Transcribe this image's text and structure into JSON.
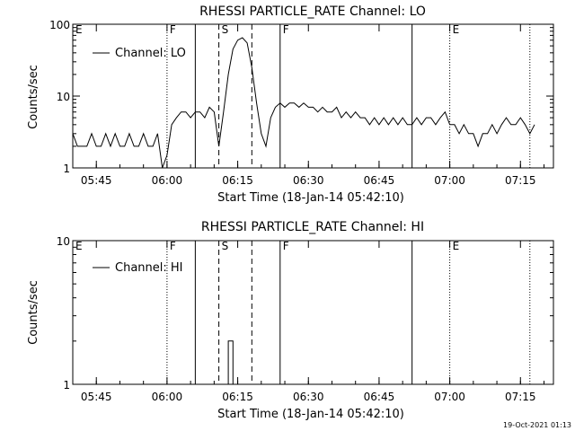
{
  "footer_stamp": "19-Oct-2021 01:13",
  "chart_data": [
    {
      "type": "line",
      "title": "RHESSI PARTICLE_RATE Channel: LO",
      "xlabel": "Start Time (18-Jan-14 05:42:10)",
      "ylabel": "Counts/sec",
      "yscale": "log",
      "ylim": [
        1,
        100
      ],
      "yticks": [
        {
          "v": 1,
          "label": "1"
        },
        {
          "v": 10,
          "label": "10"
        },
        {
          "v": 100,
          "label": "100"
        }
      ],
      "xlim": [
        "05:40",
        "07:22"
      ],
      "xticks": [
        "05:45",
        "06:00",
        "06:15",
        "06:30",
        "06:45",
        "07:00",
        "07:15"
      ],
      "legend": "Channel: LO",
      "legend_position": "top-left",
      "grid": false,
      "markers": [
        {
          "time": "05:40",
          "label": "E",
          "style": "none"
        },
        {
          "time": "06:00",
          "label": "F",
          "style": "dotted"
        },
        {
          "time": "06:06",
          "label": "",
          "style": "solid"
        },
        {
          "time": "06:11",
          "label": "S",
          "style": "dashed"
        },
        {
          "time": "06:18",
          "label": "",
          "style": "dashed"
        },
        {
          "time": "06:24",
          "label": "F",
          "style": "solid"
        },
        {
          "time": "06:52",
          "label": "",
          "style": "solid"
        },
        {
          "time": "07:00",
          "label": "E",
          "style": "dotted"
        },
        {
          "time": "07:17",
          "label": "",
          "style": "dotted"
        }
      ],
      "series": [
        {
          "name": "Channel: LO",
          "points": [
            [
              "05:40",
              3
            ],
            [
              "05:41",
              2
            ],
            [
              "05:43",
              2
            ],
            [
              "05:44",
              3
            ],
            [
              "05:45",
              2
            ],
            [
              "05:46",
              2
            ],
            [
              "05:47",
              3
            ],
            [
              "05:48",
              2
            ],
            [
              "05:49",
              3
            ],
            [
              "05:50",
              2
            ],
            [
              "05:51",
              2
            ],
            [
              "05:52",
              3
            ],
            [
              "05:53",
              2
            ],
            [
              "05:54",
              2
            ],
            [
              "05:55",
              3
            ],
            [
              "05:56",
              2
            ],
            [
              "05:57",
              2
            ],
            [
              "05:58",
              3
            ],
            [
              "05:59",
              1
            ],
            [
              "06:00",
              1.5
            ],
            [
              "06:01",
              4
            ],
            [
              "06:02",
              5
            ],
            [
              "06:03",
              6
            ],
            [
              "06:04",
              6
            ],
            [
              "06:05",
              5
            ],
            [
              "06:06",
              6
            ],
            [
              "06:07",
              6
            ],
            [
              "06:08",
              5
            ],
            [
              "06:09",
              7
            ],
            [
              "06:10",
              6
            ],
            [
              "06:11",
              2
            ],
            [
              "06:12",
              6
            ],
            [
              "06:13",
              20
            ],
            [
              "06:14",
              45
            ],
            [
              "06:15",
              60
            ],
            [
              "06:16",
              65
            ],
            [
              "06:17",
              55
            ],
            [
              "06:18",
              25
            ],
            [
              "06:19",
              8
            ],
            [
              "06:20",
              3
            ],
            [
              "06:21",
              2
            ],
            [
              "06:22",
              5
            ],
            [
              "06:23",
              7
            ],
            [
              "06:24",
              8
            ],
            [
              "06:25",
              7
            ],
            [
              "06:26",
              8
            ],
            [
              "06:27",
              8
            ],
            [
              "06:28",
              7
            ],
            [
              "06:29",
              8
            ],
            [
              "06:30",
              7
            ],
            [
              "06:31",
              7
            ],
            [
              "06:32",
              6
            ],
            [
              "06:33",
              7
            ],
            [
              "06:34",
              6
            ],
            [
              "06:35",
              6
            ],
            [
              "06:36",
              7
            ],
            [
              "06:37",
              5
            ],
            [
              "06:38",
              6
            ],
            [
              "06:39",
              5
            ],
            [
              "06:40",
              6
            ],
            [
              "06:41",
              5
            ],
            [
              "06:42",
              5
            ],
            [
              "06:43",
              4
            ],
            [
              "06:44",
              5
            ],
            [
              "06:45",
              4
            ],
            [
              "06:46",
              5
            ],
            [
              "06:47",
              4
            ],
            [
              "06:48",
              5
            ],
            [
              "06:49",
              4
            ],
            [
              "06:50",
              5
            ],
            [
              "06:51",
              4
            ],
            [
              "06:52",
              4
            ],
            [
              "06:53",
              5
            ],
            [
              "06:54",
              4
            ],
            [
              "06:55",
              5
            ],
            [
              "06:56",
              5
            ],
            [
              "06:57",
              4
            ],
            [
              "06:58",
              5
            ],
            [
              "06:59",
              6
            ],
            [
              "07:00",
              4
            ],
            [
              "07:01",
              4
            ],
            [
              "07:02",
              3
            ],
            [
              "07:03",
              4
            ],
            [
              "07:04",
              3
            ],
            [
              "07:05",
              3
            ],
            [
              "07:06",
              2
            ],
            [
              "07:07",
              3
            ],
            [
              "07:08",
              3
            ],
            [
              "07:09",
              4
            ],
            [
              "07:10",
              3
            ],
            [
              "07:11",
              4
            ],
            [
              "07:12",
              5
            ],
            [
              "07:13",
              4
            ],
            [
              "07:14",
              4
            ],
            [
              "07:15",
              5
            ],
            [
              "07:16",
              4
            ],
            [
              "07:17",
              3
            ],
            [
              "07:18",
              4
            ]
          ]
        }
      ]
    },
    {
      "type": "line",
      "title": "RHESSI PARTICLE_RATE Channel: HI",
      "xlabel": "Start Time (18-Jan-14 05:42:10)",
      "ylabel": "Counts/sec",
      "yscale": "log",
      "ylim": [
        1,
        10
      ],
      "yticks": [
        {
          "v": 1,
          "label": "1"
        },
        {
          "v": 10,
          "label": "10"
        }
      ],
      "xlim": [
        "05:40",
        "07:22"
      ],
      "xticks": [
        "05:45",
        "06:00",
        "06:15",
        "06:30",
        "06:45",
        "07:00",
        "07:15"
      ],
      "legend": "Channel: HI",
      "legend_position": "top-left",
      "grid": false,
      "markers": [
        {
          "time": "05:40",
          "label": "E",
          "style": "none"
        },
        {
          "time": "06:00",
          "label": "F",
          "style": "dotted"
        },
        {
          "time": "06:06",
          "label": "",
          "style": "solid"
        },
        {
          "time": "06:11",
          "label": "S",
          "style": "dashed"
        },
        {
          "time": "06:18",
          "label": "",
          "style": "dashed"
        },
        {
          "time": "06:24",
          "label": "F",
          "style": "solid"
        },
        {
          "time": "06:52",
          "label": "",
          "style": "solid"
        },
        {
          "time": "07:00",
          "label": "E",
          "style": "dotted"
        },
        {
          "time": "07:17",
          "label": "",
          "style": "dotted"
        }
      ],
      "series": [
        {
          "name": "Channel: HI",
          "points": [
            [
              "06:13",
              1
            ],
            [
              "06:13",
              2
            ],
            [
              "06:14",
              2
            ],
            [
              "06:14",
              1
            ]
          ]
        }
      ]
    }
  ]
}
